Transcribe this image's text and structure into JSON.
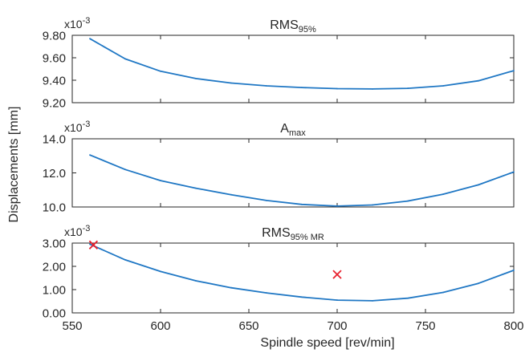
{
  "figure": {
    "ylabel": "Displacements [mm]",
    "xlabel": "Spindle speed [rev/min]",
    "x_ticks": [
      550,
      600,
      650,
      700,
      750,
      800
    ],
    "xlim": [
      550,
      800
    ]
  },
  "chart_data": [
    {
      "type": "line",
      "title_main": "RMS",
      "title_sub": "95%",
      "exponent_label": "x10",
      "exponent_power": "-3",
      "ylim": [
        9.2,
        9.8
      ],
      "y_ticks": [
        "9.20",
        "9.40",
        "9.60",
        "9.80"
      ],
      "y_tick_values": [
        9.2,
        9.4,
        9.6,
        9.8
      ],
      "series": [
        {
          "color": "#1f77c4",
          "x": [
            560,
            580,
            600,
            620,
            640,
            660,
            680,
            700,
            720,
            740,
            760,
            780,
            800
          ],
          "y": [
            9.77,
            9.59,
            9.48,
            9.415,
            9.375,
            9.35,
            9.335,
            9.325,
            9.322,
            9.328,
            9.35,
            9.395,
            9.485
          ]
        }
      ],
      "markers": []
    },
    {
      "type": "line",
      "title_main": "A",
      "title_sub": "max",
      "exponent_label": "x10",
      "exponent_power": "-3",
      "ylim": [
        10.0,
        14.0
      ],
      "y_ticks": [
        "10.0",
        "12.0",
        "14.0"
      ],
      "y_tick_values": [
        10.0,
        12.0,
        14.0
      ],
      "series": [
        {
          "color": "#1f77c4",
          "x": [
            560,
            580,
            600,
            620,
            640,
            660,
            680,
            700,
            720,
            740,
            760,
            780,
            800
          ],
          "y": [
            13.05,
            12.2,
            11.55,
            11.1,
            10.72,
            10.38,
            10.15,
            10.05,
            10.12,
            10.35,
            10.75,
            11.3,
            12.05
          ]
        }
      ],
      "markers": []
    },
    {
      "type": "line",
      "title_main": "RMS",
      "title_sub": "95% MR",
      "exponent_label": "x10",
      "exponent_power": "-3",
      "ylim": [
        0.0,
        3.0
      ],
      "y_ticks": [
        "0.00",
        "1.00",
        "2.00",
        "3.00"
      ],
      "y_tick_values": [
        0.0,
        1.0,
        2.0,
        3.0
      ],
      "series": [
        {
          "color": "#1f77c4",
          "x": [
            560,
            580,
            600,
            620,
            640,
            660,
            680,
            700,
            720,
            740,
            760,
            780,
            800
          ],
          "y": [
            2.95,
            2.28,
            1.78,
            1.38,
            1.08,
            0.86,
            0.68,
            0.55,
            0.52,
            0.63,
            0.88,
            1.27,
            1.83
          ]
        }
      ],
      "markers": [
        {
          "symbol": "x",
          "color": "#e8202e",
          "x": 562,
          "y": 2.92
        },
        {
          "symbol": "x",
          "color": "#e8202e",
          "x": 700,
          "y": 1.65
        }
      ]
    }
  ]
}
